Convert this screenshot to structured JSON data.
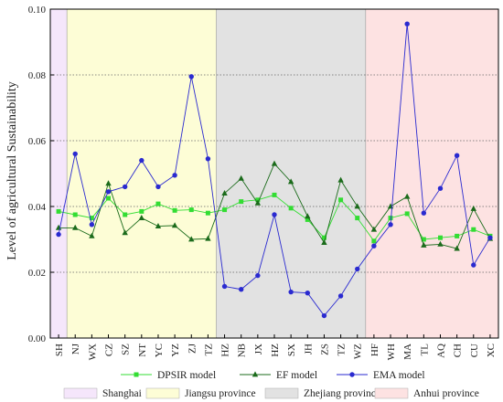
{
  "chart_data": {
    "type": "line",
    "ylabel": "Level of agricultural Sustainability",
    "ylim": [
      0,
      0.1
    ],
    "yticks": [
      "0.00",
      "0.02",
      "0.04",
      "0.06",
      "0.08",
      "0.10"
    ],
    "grid": "horizontal-dotted",
    "categories": [
      "SH",
      "NJ",
      "WX",
      "CZ",
      "SZ",
      "NT",
      "YC",
      "YZ",
      "ZJ",
      "TZ",
      "HZ",
      "NB",
      "JX",
      "HZ",
      "SX",
      "JH",
      "ZS",
      "TZ",
      "WZ",
      "HF",
      "WH",
      "MA",
      "TL",
      "AQ",
      "CH",
      "CU",
      "XC"
    ],
    "series": [
      {
        "name": "DPSIR model",
        "color": "#33dd33",
        "marker": "square",
        "values": [
          0.0385,
          0.0375,
          0.0365,
          0.0425,
          0.0375,
          0.0385,
          0.0408,
          0.0388,
          0.039,
          0.038,
          0.039,
          0.0415,
          0.042,
          0.0435,
          0.0395,
          0.036,
          0.0305,
          0.042,
          0.0365,
          0.0295,
          0.0365,
          0.0378,
          0.03,
          0.0305,
          0.031,
          0.033,
          0.031
        ]
      },
      {
        "name": "EF model",
        "color": "#1b6b1b",
        "marker": "triangle",
        "values": [
          0.0335,
          0.0335,
          0.031,
          0.047,
          0.032,
          0.0365,
          0.034,
          0.0342,
          0.03,
          0.0302,
          0.044,
          0.0485,
          0.041,
          0.053,
          0.0475,
          0.037,
          0.029,
          0.048,
          0.04,
          0.033,
          0.04,
          0.043,
          0.0282,
          0.0285,
          0.0272,
          0.0393,
          0.0302
        ]
      },
      {
        "name": "EMA model",
        "color": "#2a2ad0",
        "marker": "circle",
        "values": [
          0.0315,
          0.056,
          0.0345,
          0.0445,
          0.046,
          0.054,
          0.046,
          0.0495,
          0.0795,
          0.0545,
          0.0157,
          0.0148,
          0.019,
          0.0375,
          0.014,
          0.0137,
          0.0068,
          0.0128,
          0.021,
          0.028,
          0.0345,
          0.0955,
          0.038,
          0.0455,
          0.0555,
          0.0222,
          0.0305
        ]
      }
    ],
    "regions": [
      {
        "name": "Shanghai",
        "color": "#f5e6fb",
        "start": 0,
        "end": 0
      },
      {
        "name": "Jiangsu province",
        "color": "#fdfdd6",
        "start": 1,
        "end": 9
      },
      {
        "name": "Zhejiang province",
        "color": "#e2e2e2",
        "start": 10,
        "end": 18
      },
      {
        "name": "Anhui province",
        "color": "#fde2e2",
        "start": 19,
        "end": 26
      }
    ]
  }
}
